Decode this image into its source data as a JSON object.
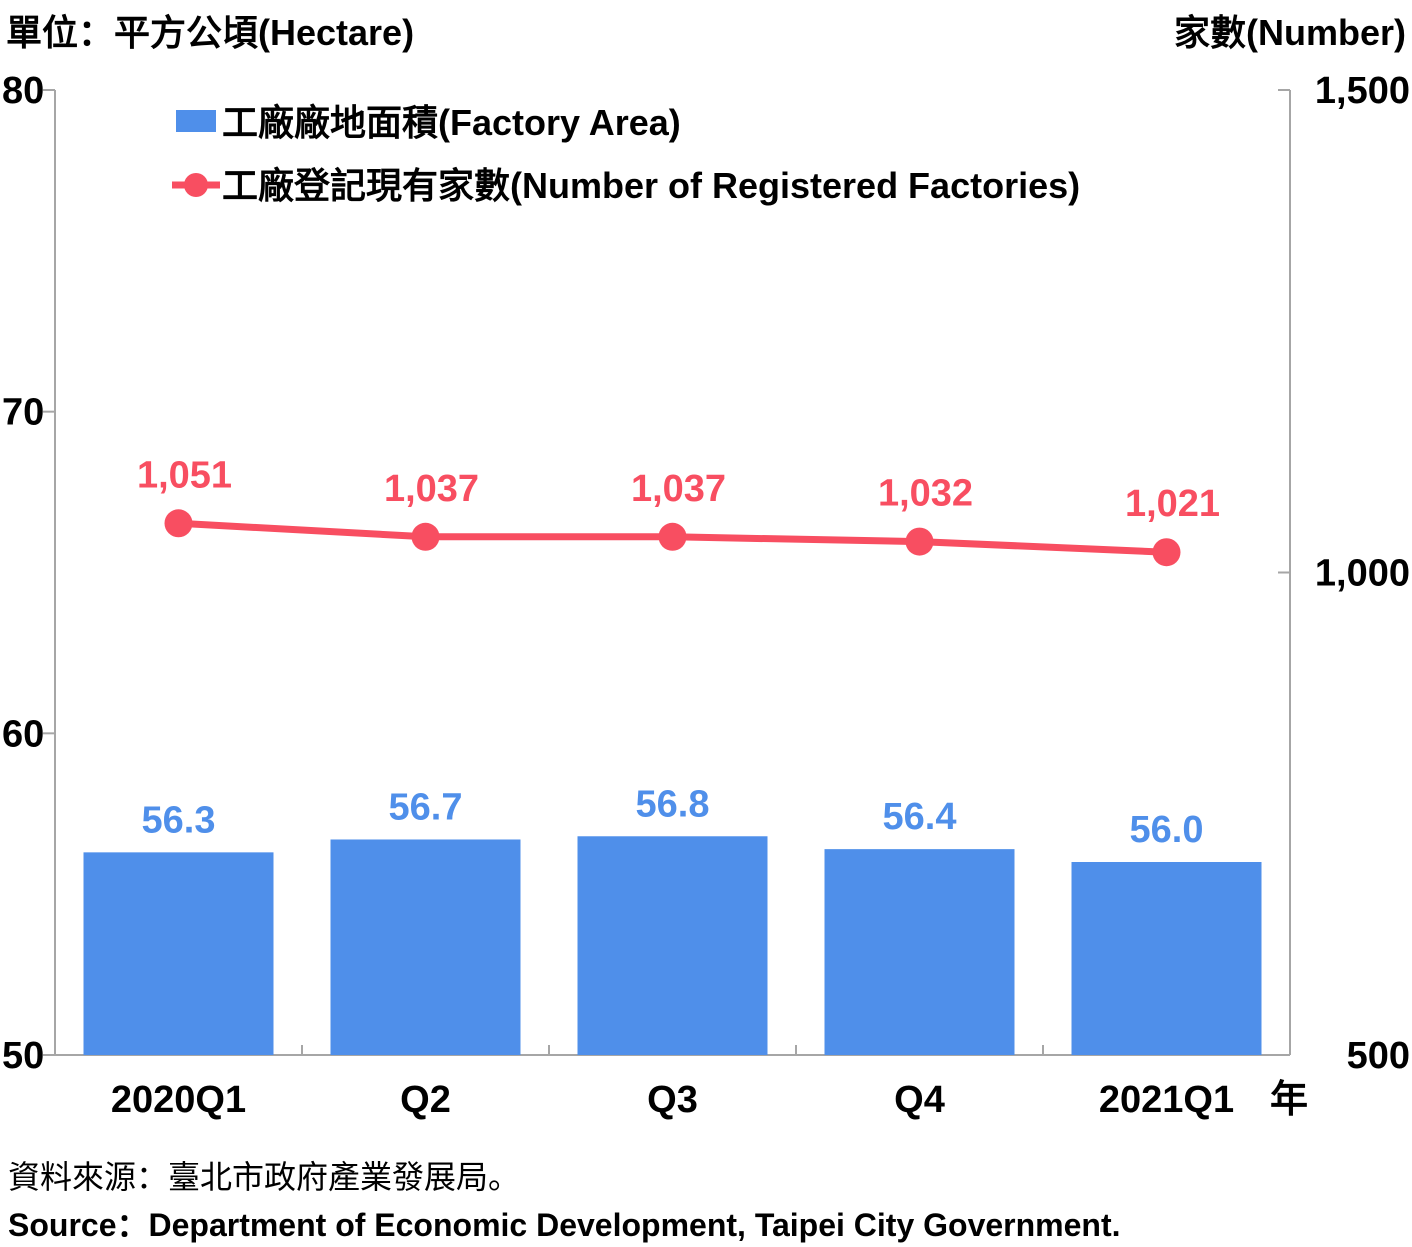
{
  "header": {
    "unit_left": "單位：平方公頃(Hectare)",
    "unit_right": "家數(Number)"
  },
  "footer": {
    "source_zh": "資料來源：臺北市政府產業發展局。",
    "source_en": "Source：Department of Economic Development, Taipei City Government."
  },
  "colors": {
    "bar": "#4f8fea",
    "line": "#f84e61",
    "axis": "#a6a6a6"
  },
  "chart_data": {
    "type": "bar",
    "categories": [
      "2020Q1",
      "Q2",
      "Q3",
      "Q4",
      "2021Q1"
    ],
    "x_suffix": "年",
    "y_left": {
      "ylim": [
        50,
        80
      ],
      "ticks": [
        "50",
        "60",
        "70",
        "80"
      ]
    },
    "y_right": {
      "ylim": [
        500,
        1500
      ],
      "ticks": [
        "500",
        "1,000",
        "1,500"
      ]
    },
    "series": [
      {
        "name": "工廠廠地面積(Factory Area)",
        "type": "bar",
        "axis": "left",
        "values": [
          56.3,
          56.7,
          56.8,
          56.4,
          56.0
        ],
        "labels": [
          "56.3",
          "56.7",
          "56.8",
          "56.4",
          "56.0"
        ]
      },
      {
        "name": "工廠登記現有家數(Number of Registered Factories)",
        "type": "line",
        "axis": "right",
        "values": [
          1051,
          1037,
          1037,
          1032,
          1021
        ],
        "labels": [
          "1,051",
          "1,037",
          "1,037",
          "1,032",
          "1,021"
        ]
      }
    ],
    "legend": "top-left"
  }
}
